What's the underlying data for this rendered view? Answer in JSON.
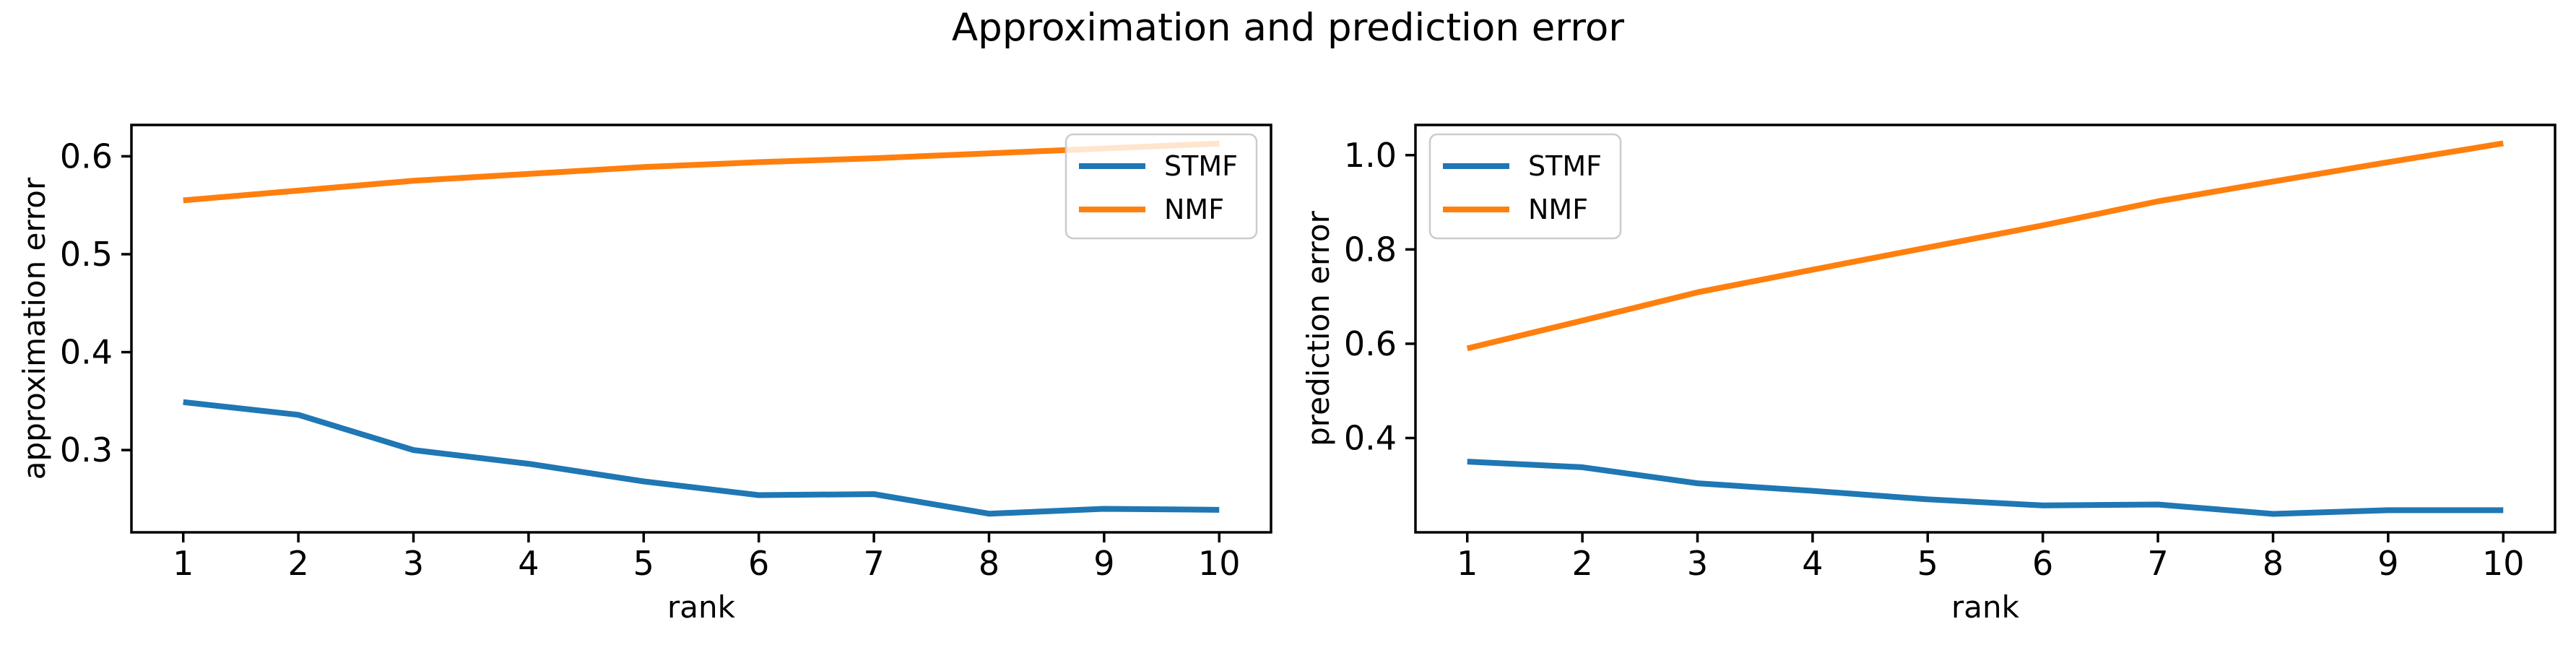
{
  "figure": {
    "title": "Approximation and prediction error"
  },
  "colors": {
    "stmf_blue": "#1f77b4",
    "nmf_orange": "#ff7f0e",
    "axis_black": "#000000",
    "legend_border": "#cccccc",
    "background": "#ffffff"
  },
  "chart_data": [
    {
      "type": "line",
      "position": "left",
      "title": "",
      "xlabel": "rank",
      "ylabel": "approximation error",
      "x": [
        1,
        2,
        3,
        4,
        5,
        6,
        7,
        8,
        9,
        10
      ],
      "xtick_labels": [
        "1",
        "2",
        "3",
        "4",
        "5",
        "6",
        "7",
        "8",
        "9",
        "10"
      ],
      "yticks": [
        0.3,
        0.4,
        0.5,
        0.6
      ],
      "ytick_labels": [
        "0.3",
        "0.4",
        "0.5",
        "0.6"
      ],
      "xlim": [
        0.55,
        10.45
      ],
      "ylim": [
        0.216,
        0.632
      ],
      "grid": false,
      "legend": {
        "position": "upper right",
        "entries": [
          "STMF",
          "NMF"
        ]
      },
      "series": [
        {
          "name": "STMF",
          "color": "#1f77b4",
          "values": [
            0.349,
            0.336,
            0.3,
            0.286,
            0.268,
            0.254,
            0.255,
            0.235,
            0.24,
            0.239
          ]
        },
        {
          "name": "NMF",
          "color": "#ff7f0e",
          "values": [
            0.555,
            0.565,
            0.575,
            0.582,
            0.589,
            0.594,
            0.598,
            0.603,
            0.608,
            0.613
          ]
        }
      ]
    },
    {
      "type": "line",
      "position": "right",
      "title": "",
      "xlabel": "rank",
      "ylabel": "prediction error",
      "x": [
        1,
        2,
        3,
        4,
        5,
        6,
        7,
        8,
        9,
        10
      ],
      "xtick_labels": [
        "1",
        "2",
        "3",
        "4",
        "5",
        "6",
        "7",
        "8",
        "9",
        "10"
      ],
      "yticks": [
        0.4,
        0.6,
        0.8,
        1.0
      ],
      "ytick_labels": [
        "0.4",
        "0.6",
        "0.8",
        "1.0"
      ],
      "xlim": [
        0.55,
        10.45
      ],
      "ylim": [
        0.2,
        1.064
      ],
      "grid": false,
      "legend": {
        "position": "upper left",
        "entries": [
          "STMF",
          "NMF"
        ]
      },
      "series": [
        {
          "name": "STMF",
          "color": "#1f77b4",
          "values": [
            0.35,
            0.338,
            0.304,
            0.288,
            0.27,
            0.257,
            0.259,
            0.239,
            0.247,
            0.247
          ]
        },
        {
          "name": "NMF",
          "color": "#ff7f0e",
          "values": [
            0.59,
            0.649,
            0.709,
            0.757,
            0.804,
            0.851,
            0.902,
            0.944,
            0.985,
            1.025
          ]
        }
      ]
    }
  ]
}
